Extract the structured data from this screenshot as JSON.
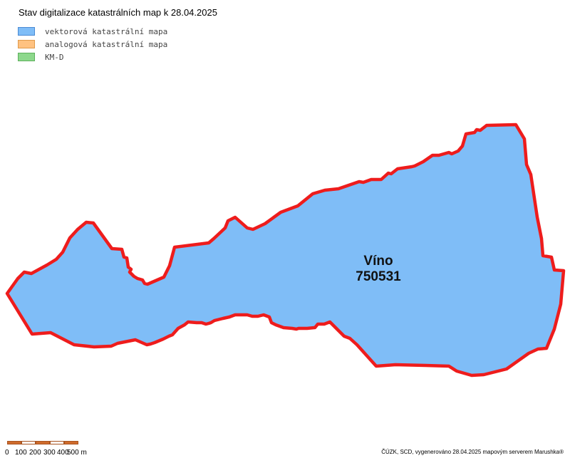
{
  "title": "Stav digitalizace katastrálních map k 28.04.2025",
  "legend": [
    {
      "label": "vektorová katastrální mapa",
      "fill": "#7fbdf7",
      "stroke": "#4a8ad4",
      "icon": "vector-map-swatch"
    },
    {
      "label": "analogová katastrální mapa",
      "fill": "#ffc281",
      "stroke": "#e09a4a",
      "icon": "analog-map-swatch"
    },
    {
      "label": "KM-D",
      "fill": "#8dd88c",
      "stroke": "#5db05c",
      "icon": "kmd-map-swatch"
    }
  ],
  "area": {
    "name": "Víno",
    "code": "750531",
    "fill": "#7fbdf7",
    "boundary_color": "#ee1c1c"
  },
  "scale": {
    "ticks": [
      "0",
      "100",
      "200",
      "300",
      "400",
      "500 m"
    ],
    "color": "#cf6b2c"
  },
  "credit": "ČÚZK, SCD, vygenerováno 28.04.2025 mapovým serverem Marushka®"
}
